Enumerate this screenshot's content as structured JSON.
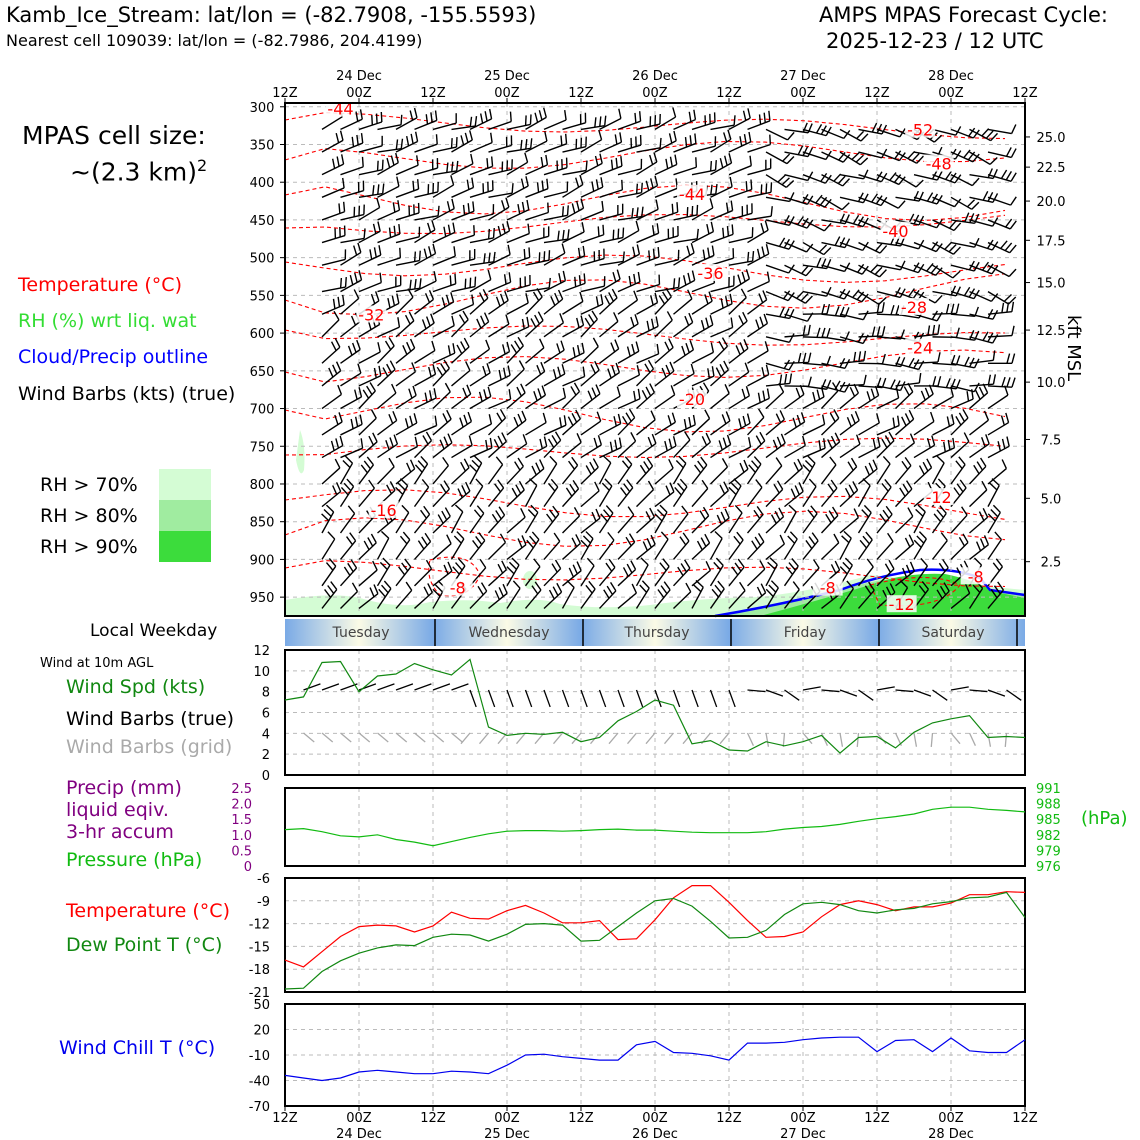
{
  "header": {
    "station_line": "Kamb_Ice_Stream: lat/lon = (-82.7908, -155.5593)",
    "cell_line": "Nearest cell 109039: lat/lon = (-82.7986, 204.4199)",
    "model_line": "AMPS MPAS Forecast Cycle:",
    "cycle_line": "2025-12-23 / 12 UTC"
  },
  "left_panel": {
    "cell_size_label": "MPAS cell size:",
    "cell_size_value": "~(2.3 km)",
    "cell_size_exp": "2",
    "legend_temperature": "Temperature (°C)",
    "legend_rh": "RH (%) wrt liq. wat",
    "legend_cloud": "Cloud/Precip outline",
    "legend_wind": "Wind Barbs (kts) (true)",
    "rh_levels": [
      {
        "label": "RH > 70%",
        "color": "#d4fcd4"
      },
      {
        "label": "RH > 80%",
        "color": "#a0eca0"
      },
      {
        "label": "RH > 90%",
        "color": "#3cdc3c"
      }
    ],
    "weekday_title": "Local Weekday",
    "wind10_title": "Wind at 10m AGL",
    "wind_spd_label": "Wind Spd (kts)",
    "wind_barbs_true_label": "Wind Barbs (true)",
    "wind_barbs_grid_label": "Wind Barbs (grid)",
    "precip_label_1": "Precip (mm)",
    "precip_label_2": "liquid eqiv.",
    "precip_label_3": "3-hr accum",
    "pressure_label": "Pressure (hPa)",
    "temp_label": "Temperature (°C)",
    "dewpoint_label": "Dew Point T (°C)",
    "windchill_label": "Wind Chill T (°C)"
  },
  "colors": {
    "temperature": "#ff0000",
    "rh": "#22c922",
    "cloud": "#0000ff",
    "wind": "#000000",
    "wind_grid": "#aaaaaa",
    "precip": "#800080",
    "pressure": "#11bb11",
    "dewpoint": "#118811",
    "windchill": "#0000ee"
  },
  "time_axis": {
    "hour_ticks": [
      "12Z",
      "00Z",
      "12Z",
      "00Z",
      "12Z",
      "00Z",
      "12Z",
      "00Z",
      "12Z",
      "00Z",
      "12Z"
    ],
    "date_labels": [
      "24 Dec",
      "25 Dec",
      "26 Dec",
      "27 Dec",
      "28 Dec"
    ],
    "weekdays": [
      "Tuesday",
      "Wednesday",
      "Thursday",
      "Friday",
      "Saturday"
    ]
  },
  "chart_data": [
    {
      "type": "contour",
      "name": "cross-section",
      "x_hours": [
        0,
        120
      ],
      "y_pressure_hPa": [
        295,
        975
      ],
      "y_ticks": [
        300,
        350,
        400,
        450,
        500,
        550,
        600,
        650,
        700,
        750,
        800,
        850,
        900,
        950
      ],
      "right_axis_label": "kft MSL",
      "right_axis_ticks": [
        {
          "label": "25.0",
          "p": 340
        },
        {
          "label": "22.5",
          "p": 380
        },
        {
          "label": "20.0",
          "p": 425
        },
        {
          "label": "17.5",
          "p": 477
        },
        {
          "label": "15.0",
          "p": 533
        },
        {
          "label": "12.5",
          "p": 596
        },
        {
          "label": "10.0",
          "p": 665
        },
        {
          "label": "7.5",
          "p": 741
        },
        {
          "label": "5.0",
          "p": 819
        },
        {
          "label": "2.5",
          "p": 903
        }
      ],
      "temp_labels": [
        {
          "text": "-44",
          "t": 9,
          "p": 305
        },
        {
          "text": "-52",
          "t": 103,
          "p": 333
        },
        {
          "text": "-48",
          "t": 106,
          "p": 378
        },
        {
          "text": "-44",
          "t": 66,
          "p": 418
        },
        {
          "text": "-40",
          "t": 99,
          "p": 467
        },
        {
          "text": "-36",
          "t": 69,
          "p": 523
        },
        {
          "text": "-32",
          "t": 14,
          "p": 578
        },
        {
          "text": "-28",
          "t": 102,
          "p": 568
        },
        {
          "text": "-24",
          "t": 103,
          "p": 622
        },
        {
          "text": "-20",
          "t": 66,
          "p": 690
        },
        {
          "text": "-16",
          "t": 16,
          "p": 837
        },
        {
          "text": "-12",
          "t": 106,
          "p": 820
        },
        {
          "text": "-8",
          "t": 28,
          "p": 940
        },
        {
          "text": "-8",
          "t": 88,
          "p": 940
        },
        {
          "text": "-8",
          "t": 112,
          "p": 925
        },
        {
          "text": "-12",
          "t": 100,
          "p": 962
        }
      ]
    },
    {
      "type": "line",
      "name": "wind speed 10m",
      "ylabel": "Wind Spd (kts)",
      "ylim": [
        0,
        12
      ],
      "yticks": [
        0,
        2,
        4,
        6,
        8,
        10,
        12
      ],
      "x": [
        0,
        3,
        6,
        9,
        12,
        15,
        18,
        21,
        24,
        27,
        30,
        33,
        36,
        39,
        42,
        45,
        48,
        51,
        54,
        57,
        60,
        63,
        66,
        69,
        72,
        75,
        78,
        81,
        84,
        87,
        90,
        93,
        96,
        99,
        102,
        105,
        108,
        111,
        114,
        117,
        120
      ],
      "values": [
        7.2,
        7.5,
        10.8,
        10.9,
        8.0,
        9.5,
        9.7,
        10.7,
        10.1,
        9.6,
        11.1,
        4.6,
        3.8,
        4.0,
        3.9,
        4.1,
        3.2,
        3.6,
        5.2,
        6.1,
        7.2,
        6.7,
        3.0,
        3.3,
        2.4,
        2.3,
        3.2,
        2.8,
        3.2,
        3.8,
        2.1,
        3.6,
        3.7,
        2.6,
        4.1,
        5.0,
        5.4,
        5.7,
        3.6,
        3.7,
        3.6
      ]
    },
    {
      "type": "line",
      "name": "pressure",
      "ylabel": "(hPa)",
      "left_ylim": [
        0,
        2.5
      ],
      "left_yticks": [
        "2.5",
        "2.0",
        "1.5",
        "1.0",
        "0.5",
        "0"
      ],
      "ylim": [
        976,
        991
      ],
      "yticks": [
        991,
        988,
        985,
        982,
        979,
        976
      ],
      "x": [
        0,
        3,
        6,
        9,
        12,
        15,
        18,
        21,
        24,
        27,
        30,
        33,
        36,
        39,
        42,
        45,
        48,
        51,
        54,
        57,
        60,
        63,
        66,
        69,
        72,
        75,
        78,
        81,
        84,
        87,
        90,
        93,
        96,
        99,
        102,
        105,
        108,
        111,
        114,
        117,
        120
      ],
      "values": [
        983.0,
        983.2,
        982.6,
        981.8,
        981.6,
        982.0,
        981.1,
        980.6,
        979.9,
        980.7,
        981.5,
        982.2,
        982.7,
        982.8,
        982.8,
        982.7,
        982.8,
        983.0,
        983.1,
        982.9,
        982.9,
        982.7,
        982.5,
        982.4,
        982.4,
        982.4,
        982.6,
        983.1,
        983.4,
        983.6,
        984.0,
        984.6,
        985.1,
        985.5,
        986.0,
        986.9,
        987.3,
        987.3,
        986.9,
        986.7,
        986.4
      ]
    },
    {
      "type": "line",
      "name": "temperature and dew point",
      "ylim": [
        -21,
        -6
      ],
      "yticks": [
        -6,
        -9,
        -12,
        -15,
        -18,
        -21
      ],
      "x": [
        0,
        3,
        6,
        9,
        12,
        15,
        18,
        21,
        24,
        27,
        30,
        33,
        36,
        39,
        42,
        45,
        48,
        51,
        54,
        57,
        60,
        63,
        66,
        69,
        72,
        75,
        78,
        81,
        84,
        87,
        90,
        93,
        96,
        99,
        102,
        105,
        108,
        111,
        114,
        117,
        120
      ],
      "series": [
        {
          "name": "Temperature",
          "values": [
            -16.8,
            -17.7,
            -15.7,
            -13.7,
            -12.4,
            -12.2,
            -12.3,
            -13.1,
            -12.3,
            -10.5,
            -11.3,
            -11.4,
            -10.3,
            -9.6,
            -10.6,
            -11.9,
            -11.9,
            -11.6,
            -14.1,
            -14.0,
            -11.5,
            -8.6,
            -7.0,
            -7.0,
            -9.2,
            -11.6,
            -13.8,
            -13.7,
            -13.1,
            -11.1,
            -9.5,
            -9.0,
            -9.5,
            -10.3,
            -9.8,
            -9.8,
            -9.3,
            -8.2,
            -8.2,
            -7.8,
            -7.9
          ]
        },
        {
          "name": "Dew Point",
          "values": [
            -20.6,
            -20.5,
            -18.3,
            -16.9,
            -15.9,
            -15.2,
            -14.8,
            -14.9,
            -13.8,
            -13.4,
            -13.5,
            -14.3,
            -13.4,
            -12.1,
            -12.0,
            -12.2,
            -14.3,
            -14.2,
            -12.4,
            -10.6,
            -9.0,
            -8.7,
            -9.7,
            -11.7,
            -13.9,
            -13.8,
            -12.9,
            -10.8,
            -9.4,
            -9.2,
            -9.5,
            -10.3,
            -10.6,
            -10.2,
            -10.0,
            -9.4,
            -9.1,
            -8.6,
            -8.5,
            -7.9,
            -11.2
          ]
        }
      ]
    },
    {
      "type": "line",
      "name": "wind chill",
      "ylim": [
        -70,
        50
      ],
      "yticks": [
        50,
        20,
        -10,
        -40,
        -70
      ],
      "x": [
        0,
        3,
        6,
        9,
        12,
        15,
        18,
        21,
        24,
        27,
        30,
        33,
        36,
        39,
        42,
        45,
        48,
        51,
        54,
        57,
        60,
        63,
        66,
        69,
        72,
        75,
        78,
        81,
        84,
        87,
        90,
        93,
        96,
        99,
        102,
        105,
        108,
        111,
        114,
        117,
        120
      ],
      "values": [
        -34,
        -37,
        -40,
        -37,
        -30,
        -28,
        -30,
        -32,
        -32,
        -29,
        -30,
        -32,
        -22,
        -10,
        -9,
        -12,
        -14,
        -16,
        -16,
        2,
        6,
        -7,
        -8,
        -11,
        -16,
        4,
        4,
        5,
        8,
        10,
        11,
        11,
        -6,
        7,
        8,
        -6,
        10,
        -5,
        -7,
        -7,
        8
      ]
    }
  ]
}
